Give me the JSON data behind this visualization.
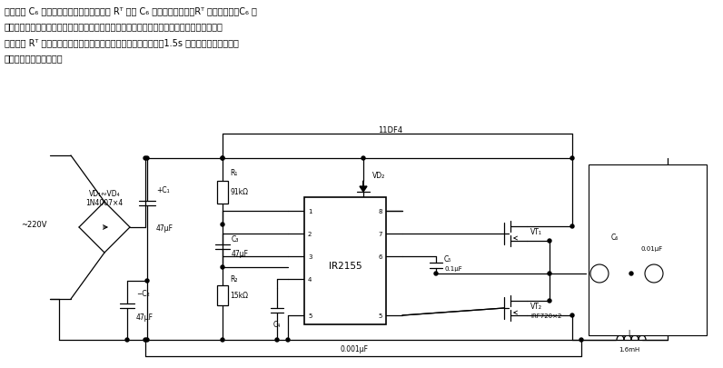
{
  "bg_color": "#ffffff",
  "line_color": "#000000",
  "fig_width": 7.96,
  "fig_height": 4.06,
  "dpi": 100,
  "para_lines": [
    "光灯接在 C₆ 两端、正温度系数的热敏电阵 Rᵀ 也与 C₆ 并联。在冷态下，Rᵀ 的阵値很小，C₆ 两",
    "端的电压也很低。因此，在电源刚接通时，荧光灯管两端的电压是很低的。随着时间的增长，",
    "其电流使 Rᵀ 加热，阵値变大，荧光灯管两端的电压也逐渐升高，1.5s 后，灯管两端的电压上",
    "升至额定値，灯管点亮。"
  ]
}
